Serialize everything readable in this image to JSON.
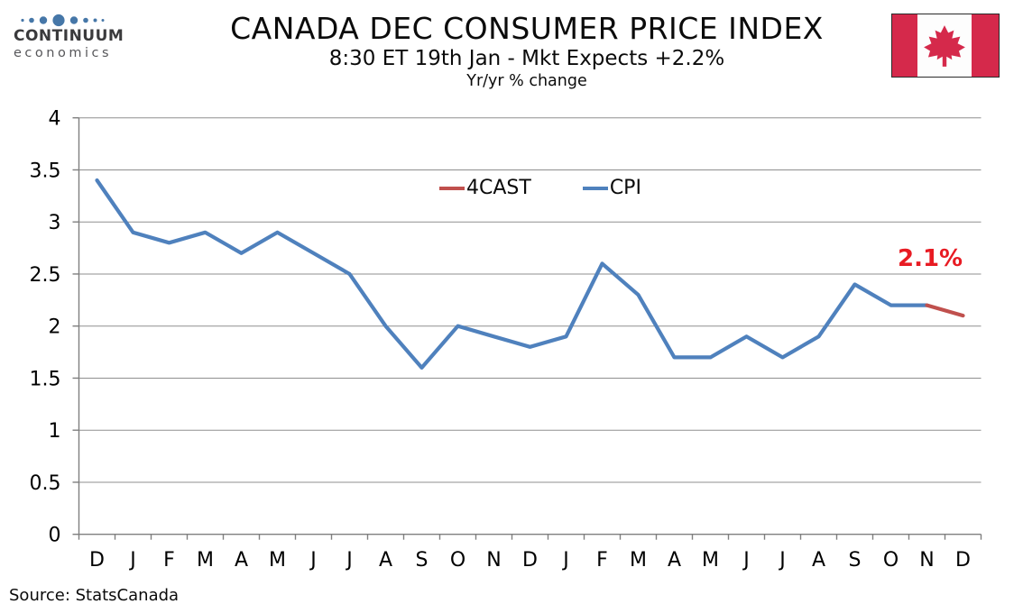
{
  "header": {
    "logo_line1": "CONTINUUM",
    "logo_line2": "economics",
    "title": "CANADA DEC CONSUMER PRICE INDEX",
    "subtitle": "8:30 ET 19th Jan - Mkt Expects +2.2%",
    "units_label": "Yr/yr % change"
  },
  "chart_data": {
    "type": "line",
    "title": "CANADA DEC CONSUMER PRICE INDEX",
    "subtitle": "8:30 ET 19th Jan - Mkt Expects +2.2%",
    "units": "Yr/yr % change",
    "categories": [
      "D",
      "J",
      "F",
      "M",
      "A",
      "M",
      "J",
      "J",
      "A",
      "S",
      "O",
      "N",
      "D",
      "J",
      "F",
      "M",
      "A",
      "M",
      "J",
      "J",
      "A",
      "S",
      "O",
      "N",
      "D"
    ],
    "series": [
      {
        "name": "CPI",
        "color": "#4F81BD",
        "values": [
          3.4,
          2.9,
          2.8,
          2.9,
          2.7,
          2.9,
          2.7,
          2.5,
          2.0,
          1.6,
          2.0,
          1.9,
          1.8,
          1.9,
          2.6,
          2.3,
          1.7,
          1.7,
          1.9,
          1.7,
          1.9,
          2.4,
          2.2,
          2.2,
          null
        ]
      },
      {
        "name": "4CAST",
        "color": "#C0504D",
        "values": [
          null,
          null,
          null,
          null,
          null,
          null,
          null,
          null,
          null,
          null,
          null,
          null,
          null,
          null,
          null,
          null,
          null,
          null,
          null,
          null,
          null,
          null,
          null,
          2.2,
          2.1
        ]
      }
    ],
    "ylim": [
      0,
      4
    ],
    "yticks": [
      0,
      0.5,
      1,
      1.5,
      2,
      2.5,
      3,
      3.5,
      4
    ],
    "grid": true,
    "legend_position": "inside-top",
    "annotation": {
      "text": "2.1%",
      "color": "#E81B23"
    }
  },
  "footer": {
    "source": "Source: StatsCanada"
  },
  "colors": {
    "flag_red": "#D5294B",
    "logo_blue": "#4677A8"
  }
}
